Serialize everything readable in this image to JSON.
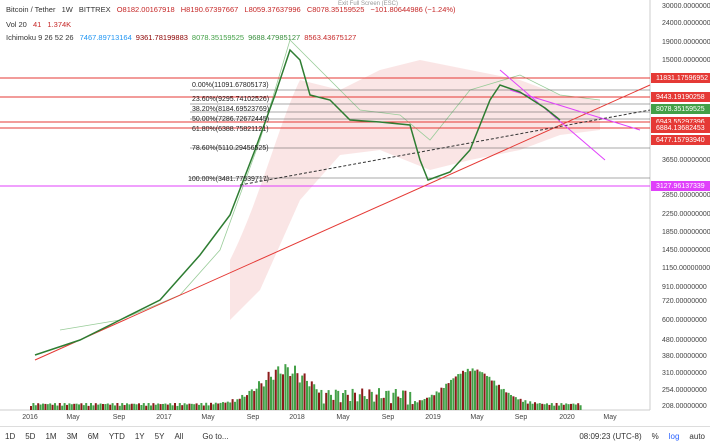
{
  "header": {
    "symbol": "Bitcoin / Tether",
    "interval": "1W",
    "exchange": "BITTREX",
    "open": "O8182.00167918",
    "high": "H8190.67397667",
    "low": "L8059.37637996",
    "close": "C8078.35159525",
    "change": "−101.80644986 (−1.24%)",
    "exit": "Exit Full Screen (ESC)"
  },
  "volume": {
    "label": "Vol 20",
    "v1": "41",
    "v2": "1.374K"
  },
  "ichimoku": {
    "label": "Ichimoku 9 26 52 26",
    "values": [
      {
        "text": "7467.89713164",
        "color": "#2196f3"
      },
      {
        "text": "9361.78199883",
        "color": "#8b0000"
      },
      {
        "text": "8078.35159525",
        "color": "#43a047"
      },
      {
        "text": "9688.47985127",
        "color": "#388e3c"
      },
      {
        "text": "8563.43675127",
        "color": "#c62828"
      }
    ]
  },
  "fib": [
    "0.00%(11091.67805173)",
    "23.60%(9295.74102526)",
    "38.20%(8184.69523769)",
    "50.00%(7286.72672445)",
    "61.80%(6388.75821121)",
    "78.60%(5110.29456525)",
    "100.00%(3481.77539717)"
  ],
  "price_axis": [
    "30000.00000000",
    "24000.00000000",
    "19000.00000000",
    "15000.00000000",
    "3650.00000000",
    "2850.00000000",
    "2250.00000000",
    "1850.00000000",
    "1450.00000000",
    "1150.00000000",
    "910.00000000",
    "720.00000000",
    "600.00000000",
    "480.00000000",
    "380.00000000",
    "310.00000000",
    "254.00000000",
    "208.00000000"
  ],
  "price_tags": [
    {
      "text": "11831.17596952",
      "color": "#e53935"
    },
    {
      "text": "9443.19190258",
      "color": "#e53935"
    },
    {
      "text": "8078.35159525",
      "color": "#43a047"
    },
    {
      "text": "6943.55297396",
      "color": "#e53935"
    },
    {
      "text": "6884.13682453",
      "color": "#e53935"
    },
    {
      "text": "6477.15793940",
      "color": "#e53935"
    },
    {
      "text": "3127.96137339",
      "color": "#e040fb"
    }
  ],
  "time_axis": [
    "2016",
    "May",
    "Sep",
    "2017",
    "May",
    "Sep",
    "2018",
    "May",
    "Sep",
    "2019",
    "May",
    "Sep",
    "2020",
    "May"
  ],
  "toolbar": {
    "ranges": [
      "1D",
      "5D",
      "1M",
      "3M",
      "6M",
      "YTD",
      "1Y",
      "5Y",
      "All"
    ],
    "goto": "Go to...",
    "time": "08:09:23 (UTC-8)",
    "percent": "%",
    "log": "log",
    "auto": "auto"
  }
}
